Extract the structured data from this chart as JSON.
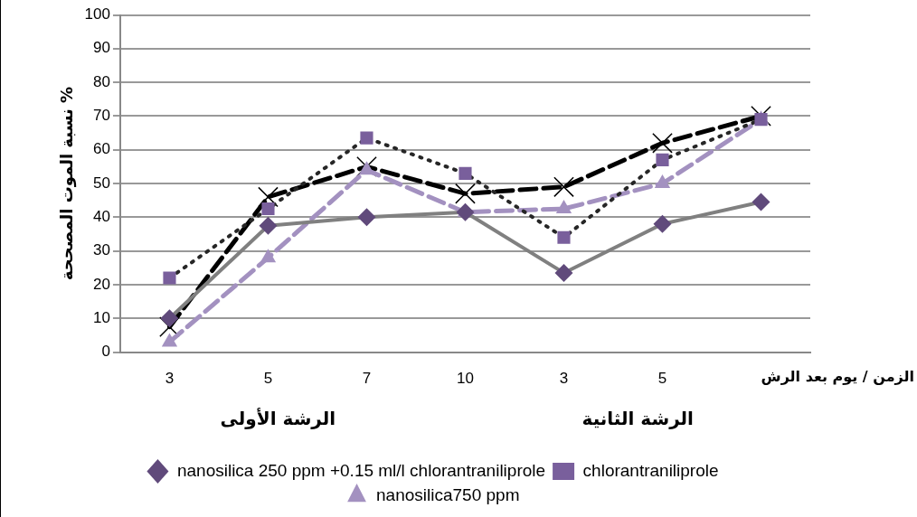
{
  "chart_data": {
    "type": "line",
    "ylabel": "نسبة الموت المصححة %",
    "xlabel": "الزمن / يوم بعد الرش",
    "categories": [
      "3",
      "5",
      "7",
      "10",
      "3",
      "5",
      null
    ],
    "ylim": [
      0,
      100
    ],
    "yticks": [
      0,
      10,
      20,
      30,
      40,
      50,
      60,
      70,
      80,
      90,
      100
    ],
    "grid": "y",
    "legend": "bottom",
    "annotations": [
      "الرشة الأولى",
      "الرشة الثانية"
    ],
    "series": [
      {
        "name": "nanosilica 250 ppm +0.15 ml/l chlorantraniliprole",
        "color": "#808080",
        "colors": [
          "#604a7b",
          "#604a7b",
          "#604a7b",
          "#604a7b",
          "#604a7b",
          "#604a7b",
          "#604a7b"
        ],
        "marker": "diamond",
        "line_style": "solid",
        "values": [
          10,
          37.5,
          40,
          41.5,
          23.5,
          38,
          44.5
        ]
      },
      {
        "name": "chlorantraniliprole",
        "color": "#262626",
        "colors": [
          "#795f9c",
          "#795f9c",
          "#795f9c",
          "#795f9c",
          "#795f9c",
          "#795f9c",
          "#795f9c"
        ],
        "marker": "square",
        "line_style": "dotted",
        "values": [
          22,
          42.5,
          63.5,
          53,
          34,
          57,
          69
        ]
      },
      {
        "name": "nanosilica750 ppm",
        "color": "#a391c0",
        "colors": [
          "#a391c0",
          "#a391c0",
          "#a391c0",
          "#a391c0",
          "#a391c0",
          "#a391c0",
          "#a391c0"
        ],
        "marker": "triangle",
        "line_style": "dashed",
        "values": [
          3,
          28,
          54,
          41.5,
          42.5,
          50,
          69
        ]
      },
      {
        "color": "#000000",
        "colors": [
          "#000000",
          "#000000",
          "#000000",
          "#000000",
          "#000000",
          "#000000",
          "#000000"
        ],
        "marker": "cross",
        "line_style": "dashed",
        "values": [
          7.5,
          46,
          55,
          47,
          49,
          62,
          70
        ]
      }
    ]
  }
}
